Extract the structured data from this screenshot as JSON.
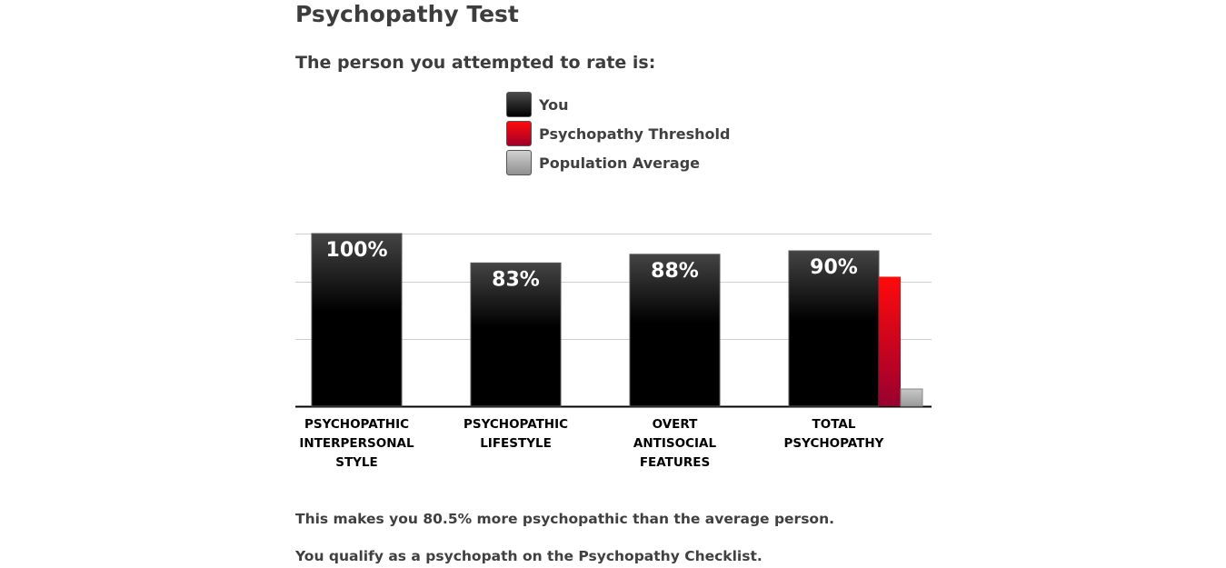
{
  "page": {
    "title": "Psychopathy Test",
    "subtitle": "The person you attempted to rate is:",
    "summary_1": "This makes you 80.5% more psychopathic than the average person.",
    "summary_2": "You qualify as a psychopath on the Psychopathy Checklist."
  },
  "legend": {
    "items": [
      {
        "label": "You",
        "color": "#000000"
      },
      {
        "label": "Psychopathy Threshold",
        "color": "#e0001a"
      },
      {
        "label": "Population Average",
        "color": "#a8a8a8"
      }
    ]
  },
  "chart_data": {
    "type": "bar",
    "title": "",
    "xlabel": "",
    "ylabel": "",
    "ylim": [
      0,
      100
    ],
    "grid": true,
    "legend_placement": "top-center",
    "categories": [
      [
        "PSYCHOPATHIC",
        "INTERPERSONAL",
        "STYLE"
      ],
      [
        "PSYCHOPATHIC",
        "LIFESTYLE"
      ],
      [
        "OVERT",
        "ANTISOCIAL",
        "FEATURES"
      ],
      [
        "TOTAL",
        "PSYCHOPATHY"
      ]
    ],
    "series": [
      {
        "name": "You",
        "values": [
          100,
          83,
          88,
          90
        ],
        "labels": [
          "100%",
          "83%",
          "88%",
          "90%"
        ],
        "color": "#000000"
      },
      {
        "name": "Psychopathy Threshold",
        "values": [
          null,
          null,
          null,
          75
        ],
        "color": "#e0001a"
      },
      {
        "name": "Population Average",
        "values": [
          null,
          null,
          null,
          10
        ],
        "color": "#a8a8a8"
      }
    ]
  }
}
